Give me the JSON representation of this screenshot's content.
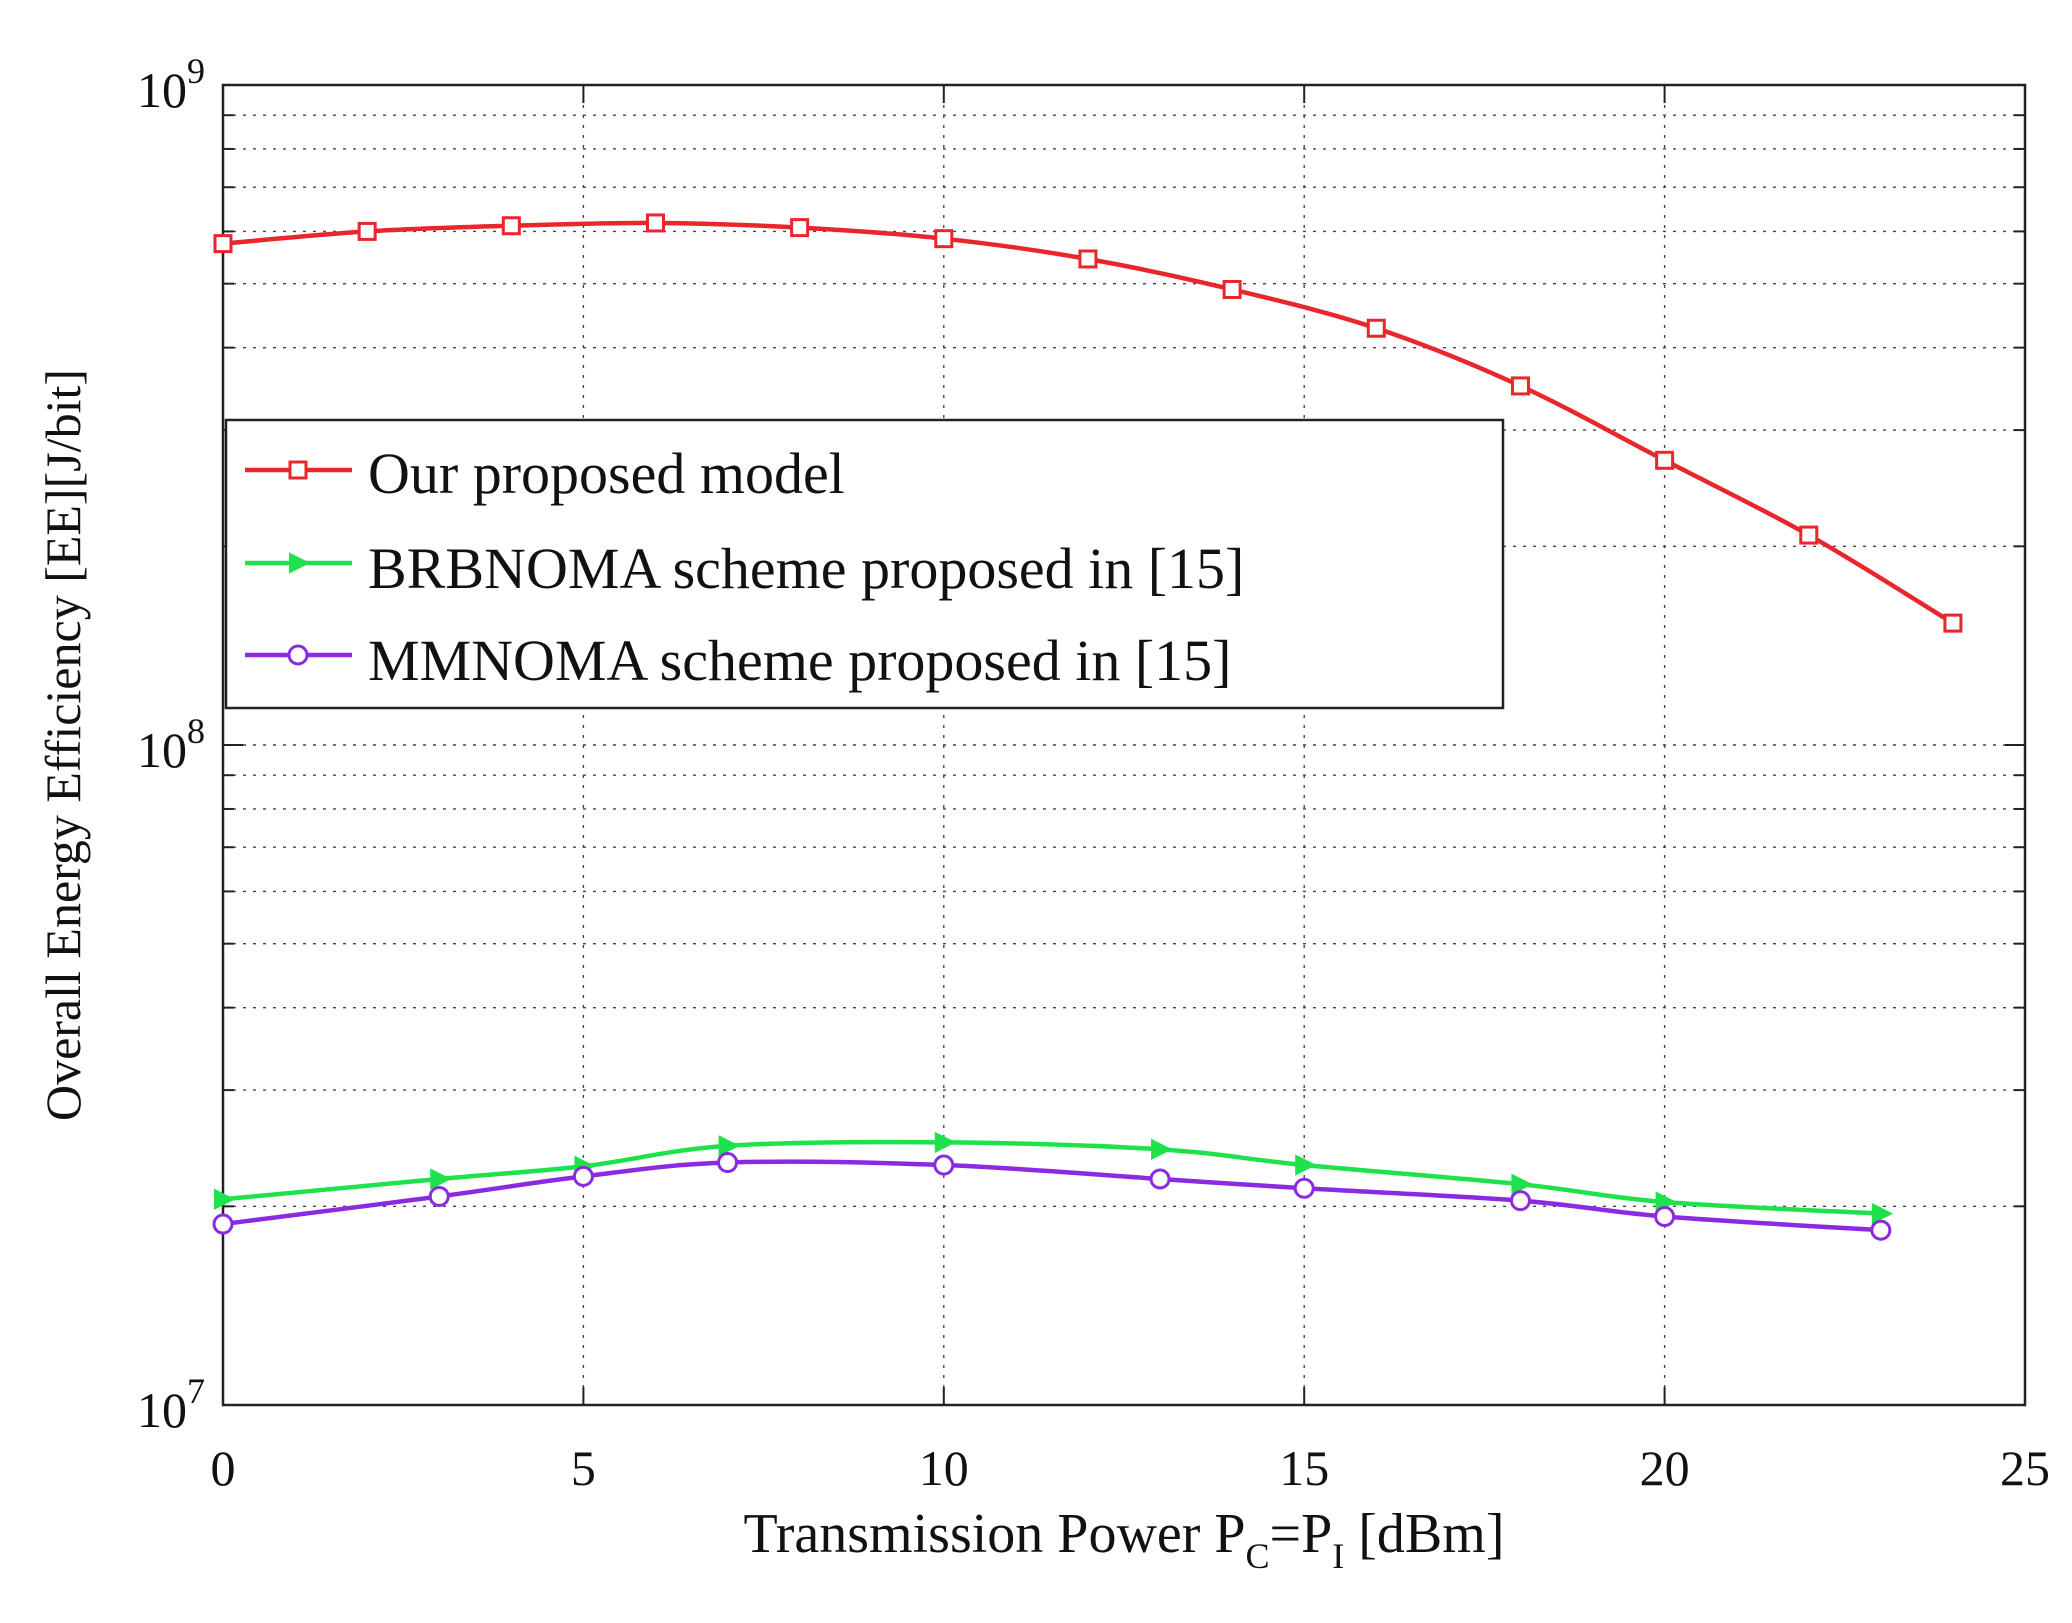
{
  "chart_data": {
    "type": "line",
    "title": "",
    "xlabel": {
      "prefix": "Transmission Power P",
      "sub1": "C",
      "mid": "=P",
      "sub2": "I",
      "suffix": " [dBm]"
    },
    "ylabel": "Overall Energy Efficiency [EE][J/bit]",
    "yscale": "log",
    "xlim": [
      0,
      25
    ],
    "ylim": [
      10000000,
      1000000000
    ],
    "xticks": [
      0,
      5,
      10,
      15,
      20,
      25
    ],
    "xtick_labels": [
      "0",
      "5",
      "10",
      "15",
      "20",
      "25"
    ],
    "yticks": [
      {
        "value": 10000000,
        "base": "10",
        "exp": "7"
      },
      {
        "value": 100000000,
        "base": "10",
        "exp": "8"
      },
      {
        "value": 1000000000,
        "base": "10",
        "exp": "9"
      }
    ],
    "grid": true,
    "legend_position": "upper-left",
    "series": [
      {
        "name": "Our proposed model",
        "color": "#e8262b",
        "marker": "square",
        "x": [
          0,
          2,
          4,
          6,
          8,
          10,
          12,
          14,
          16,
          18,
          20,
          22,
          24
        ],
        "y": [
          575000000,
          600000000,
          612000000,
          618000000,
          608000000,
          585000000,
          545000000,
          490000000,
          428000000,
          350000000,
          270000000,
          208000000,
          153000000
        ]
      },
      {
        "name": "BRBNOMA scheme proposed in [15]",
        "color": "#1ee24c",
        "marker": "triangle-right",
        "x": [
          0,
          3,
          5,
          7,
          10,
          13,
          15,
          18,
          20,
          23
        ],
        "y": [
          20500000,
          22000000,
          23000000,
          24700000,
          25000000,
          24400000,
          23100000,
          21600000,
          20300000,
          19500000
        ]
      },
      {
        "name": "MMNOMA scheme proposed in [15]",
        "color": "#8a2be2",
        "marker": "circle",
        "x": [
          0,
          3,
          5,
          7,
          10,
          13,
          15,
          18,
          20,
          23
        ],
        "y": [
          18800000,
          20700000,
          22200000,
          23300000,
          23100000,
          22000000,
          21300000,
          20400000,
          19300000,
          18400000
        ]
      }
    ]
  }
}
